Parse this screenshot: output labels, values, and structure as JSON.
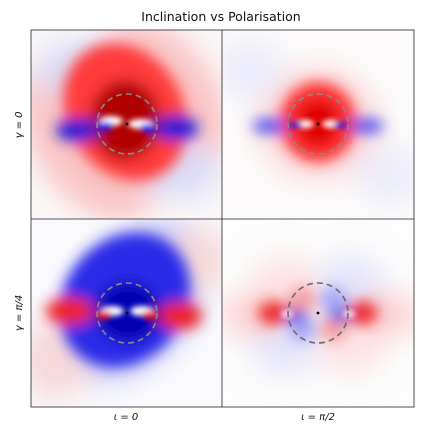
{
  "figure": {
    "title": "Inclination vs Polarisation",
    "col_labels": [
      "ι = 0",
      "ι = π/2"
    ],
    "row_labels": [
      "γ = 0",
      "γ = π/4"
    ]
  },
  "chart_data": {
    "type": "heatmap",
    "title": "Inclination vs Polarisation",
    "layout": "2x2 grid",
    "columns": [
      "ι = 0",
      "ι = π/2"
    ],
    "rows": [
      "γ = 0",
      "γ = π/4"
    ],
    "colormap": "bwr",
    "colors": {
      "positive": "#e8000b",
      "negative": "#0000d8",
      "zero": "#ffffff"
    },
    "grid": false,
    "legend": "none",
    "panels": [
      {
        "row": "γ = 0",
        "col": "ι = 0",
        "pattern": "strong positive core with two negative lobes on the horizontal axis",
        "dashed_circle": true
      },
      {
        "row": "γ = 0",
        "col": "ι = π/2",
        "pattern": "compact positive core with two negative lobes on the horizontal axis",
        "dashed_circle": true
      },
      {
        "row": "γ = π/4",
        "col": "ι = 0",
        "pattern": "rotated pattern: broad negative field with positive lobes on the horizontal axis",
        "dashed_circle": true
      },
      {
        "row": "γ = π/4",
        "col": "ι = π/2",
        "pattern": "quadrupolar pattern of alternating positive and negative lobes",
        "dashed_circle": true
      }
    ]
  }
}
